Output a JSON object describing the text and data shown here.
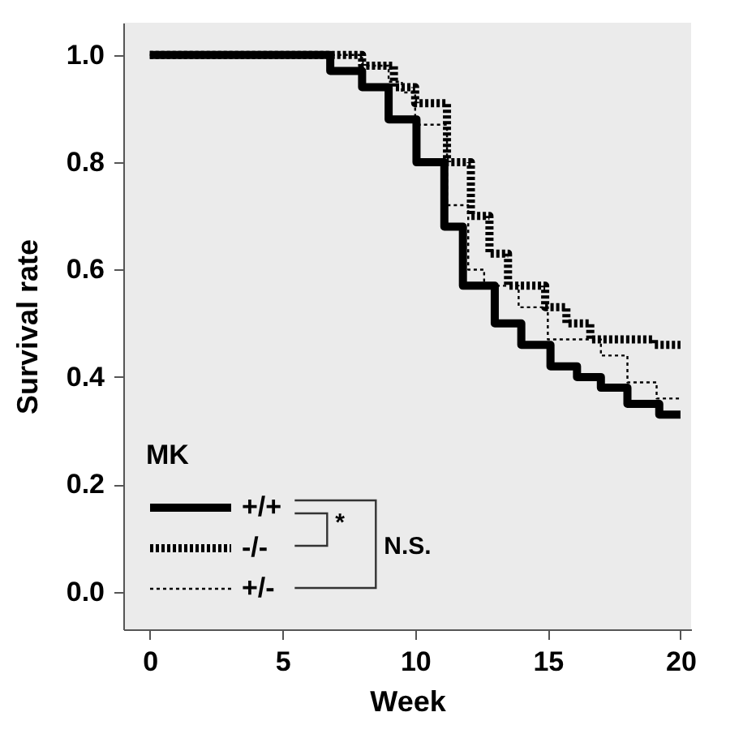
{
  "chart_data": {
    "type": "step",
    "xlabel": "Week",
    "ylabel": "Survival rate",
    "legend_title": "MK",
    "series": [
      {
        "name": "+/+",
        "color": "#000000",
        "line_style": "solid",
        "x": [
          0,
          6.8,
          8.0,
          9.0,
          10.05,
          11.1,
          11.8,
          13.0,
          14.0,
          15.1,
          16.1,
          17.0,
          18.0,
          19.2,
          20.0
        ],
        "values": [
          1.0,
          0.97,
          0.94,
          0.88,
          0.8,
          0.68,
          0.57,
          0.5,
          0.46,
          0.42,
          0.4,
          0.38,
          0.35,
          0.33,
          0.33
        ]
      },
      {
        "name": "-/-",
        "color": "#000000",
        "line_style": "dashed",
        "x": [
          0,
          8.0,
          9.2,
          10.0,
          11.2,
          12.1,
          12.8,
          13.5,
          14.9,
          15.7,
          16.6,
          19.0,
          20.0
        ],
        "values": [
          1.0,
          0.98,
          0.94,
          0.91,
          0.8,
          0.7,
          0.63,
          0.57,
          0.53,
          0.5,
          0.47,
          0.46,
          0.46
        ]
      },
      {
        "name": "+/-",
        "color": "#000000",
        "line_style": "dotted",
        "x": [
          0,
          8.0,
          9.0,
          9.5,
          10.0,
          11.2,
          12.0,
          12.6,
          13.9,
          15.0,
          17.0,
          18.0,
          19.1,
          20.0
        ],
        "values": [
          1.0,
          0.98,
          0.95,
          0.93,
          0.87,
          0.72,
          0.6,
          0.57,
          0.53,
          0.47,
          0.44,
          0.39,
          0.36,
          0.36
        ]
      }
    ],
    "xlim": [
      -1,
      20.4
    ],
    "ylim": [
      -0.07,
      1.06
    ],
    "xticks": [
      0,
      5,
      10,
      15,
      20
    ],
    "yticks": [
      {
        "value": 0,
        "label": "0.0"
      },
      0.2,
      0.4,
      0.6,
      0.8,
      {
        "value": 1,
        "label": "1.0"
      }
    ],
    "grid": false,
    "legend": "bottom left",
    "annotations": [
      "*",
      "N.S."
    ]
  }
}
